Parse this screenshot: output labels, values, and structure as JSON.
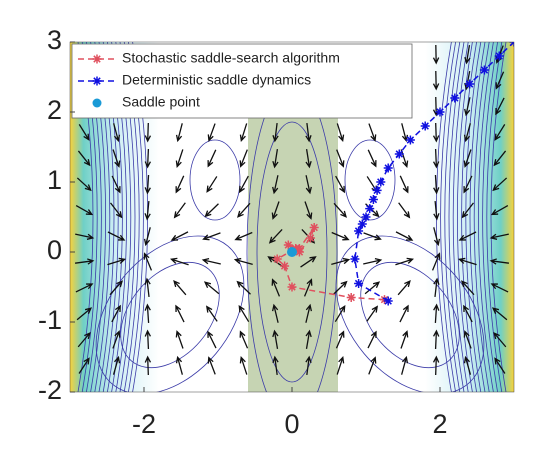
{
  "chart_data": {
    "type": "line",
    "xlim": [
      -3,
      3
    ],
    "ylim": [
      -2,
      3
    ],
    "xticks": [
      -2,
      0,
      2
    ],
    "yticks": [
      -2,
      -1,
      0,
      1,
      2,
      3
    ],
    "legend": "upper-left",
    "series": [
      {
        "name": "Stochastic saddle-search algorithm",
        "color": "#e0505e",
        "marker": "*",
        "dashed": true,
        "x": [
          1.25,
          0.8,
          0.0,
          -0.1,
          -0.2,
          0.05,
          -0.05,
          0.1,
          0.25,
          0.3,
          0.1,
          0.0
        ],
        "values": [
          -0.68,
          -0.65,
          -0.5,
          -0.2,
          -0.1,
          0.05,
          0.1,
          0.0,
          0.2,
          0.35,
          0.05,
          0.0
        ]
      },
      {
        "name": "Deterministic saddle dynamics",
        "color": "#1010e0",
        "marker": "*",
        "dashed": true,
        "x": [
          1.3,
          0.9,
          0.85,
          0.9,
          0.95,
          1.0,
          1.05,
          1.1,
          1.15,
          1.2,
          1.3,
          1.45,
          1.6,
          1.8,
          2.0,
          2.2,
          2.4,
          2.6,
          2.8,
          3.0
        ],
        "values": [
          -0.7,
          -0.45,
          -0.1,
          0.3,
          0.4,
          0.5,
          0.62,
          0.75,
          0.88,
          1.0,
          1.2,
          1.4,
          1.6,
          1.8,
          2.0,
          2.2,
          2.4,
          2.6,
          2.8,
          3.0
        ]
      },
      {
        "name": "Saddle point",
        "color": "#1a9ad6",
        "marker": "o",
        "dashed": false,
        "x": [
          0
        ],
        "values": [
          0
        ]
      }
    ]
  }
}
